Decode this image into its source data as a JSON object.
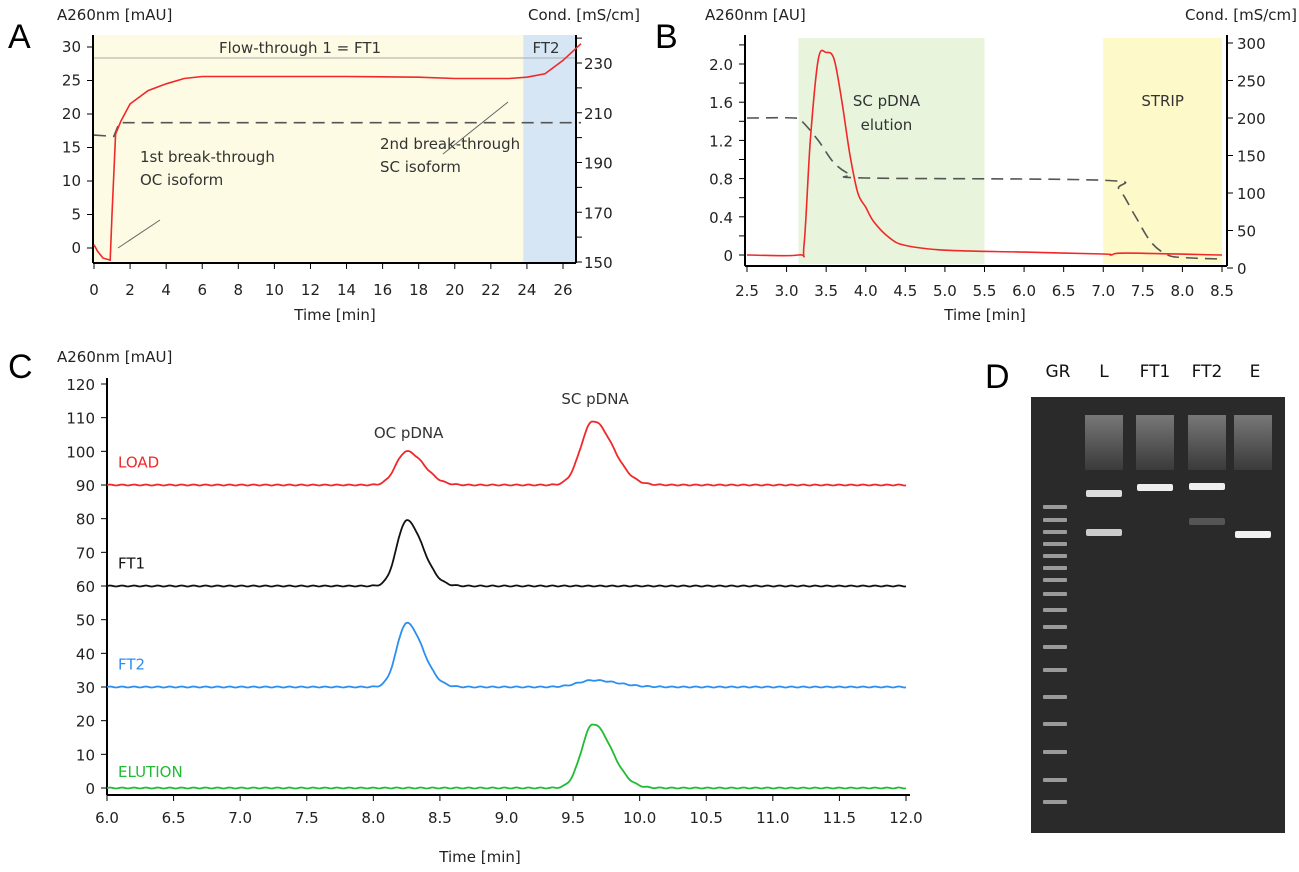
{
  "chart_data": [
    {
      "panel": "A",
      "type": "line",
      "ylabel": "A260nm [mAU]",
      "y2label": "Cond. [mS/cm]",
      "xlabel": "Time [min]",
      "xlim": [
        0,
        27
      ],
      "ylim": [
        -2.5,
        33
      ],
      "y2lim": [
        150,
        240
      ],
      "xticks": [
        0,
        2,
        4,
        6,
        8,
        10,
        12,
        14,
        16,
        18,
        20,
        22,
        24,
        26
      ],
      "yticks": [
        0,
        5,
        10,
        15,
        20,
        25,
        30
      ],
      "y2ticks": [
        150,
        170,
        190,
        210,
        230
      ],
      "regions": [
        {
          "label": "Flow-through 1 = FT1",
          "from": 0,
          "to": 23.8,
          "color": "#fdfbe3"
        },
        {
          "label": "FT2",
          "from": 23.8,
          "to": 27,
          "color": "#d6e6f5"
        }
      ],
      "annotations": [
        {
          "line1": "1st break-through",
          "line2": "OC isoform",
          "x": 1.2,
          "y": 4
        },
        {
          "line1": "2nd break-through",
          "line2": "SC isoform",
          "x": 23.3,
          "y": 25.5
        }
      ],
      "series": [
        {
          "name": "A260",
          "axis": "left",
          "color": "#f0282a",
          "dashed": false,
          "x": [
            0,
            0.2,
            0.5,
            0.9,
            1.0,
            1.2,
            1.5,
            2,
            3,
            4,
            5,
            6,
            10,
            14,
            18,
            20,
            23,
            24,
            25,
            26,
            27
          ],
          "y": [
            0.5,
            -0.5,
            -1.5,
            -1.8,
            5,
            17,
            19,
            21.5,
            23.5,
            24.5,
            25.3,
            25.6,
            25.6,
            25.6,
            25.5,
            25.3,
            25.3,
            25.5,
            26,
            28,
            30.5
          ]
        },
        {
          "name": "Conductivity",
          "axis": "right",
          "color": "#555555",
          "dashed": true,
          "x": [
            0,
            1.1,
            1.4,
            27
          ],
          "y": [
            201,
            200.5,
            206,
            206
          ]
        }
      ]
    },
    {
      "panel": "B",
      "type": "line",
      "ylabel": "A260nm [AU]",
      "y2label": "Cond. [mS/cm]",
      "xlabel": "Time [min]",
      "xlim": [
        2.5,
        8.5
      ],
      "ylim": [
        -0.1,
        2.2
      ],
      "y2lim": [
        0,
        300
      ],
      "xticks": [
        "2.5",
        "3.0",
        "3.5",
        "4.0",
        "4.5",
        "5.0",
        "5.5",
        "6.0",
        "6.5",
        "7.0",
        "7.5",
        "8.0",
        "8.5"
      ],
      "yticks": [
        "0",
        "0.4",
        "0.8",
        "1.2",
        "1.6",
        "2.0"
      ],
      "y2ticks": [
        0,
        50,
        100,
        150,
        200,
        250,
        300
      ],
      "regions": [
        {
          "line1": "SC pDNA",
          "line2": "elution",
          "from": 3.15,
          "to": 5.5,
          "color": "#e8f5dc"
        },
        {
          "line1": "STRIP",
          "line2": "",
          "from": 7.0,
          "to": 8.5,
          "color": "#fdf9c8"
        }
      ],
      "series": [
        {
          "name": "A260",
          "axis": "left",
          "color": "#f0282a",
          "dashed": false,
          "x": [
            2.5,
            3.15,
            3.22,
            3.3,
            3.4,
            3.5,
            3.6,
            3.7,
            3.8,
            3.9,
            4.0,
            4.1,
            4.3,
            4.5,
            5.0,
            6.0,
            7.0,
            7.1,
            7.3,
            8.5
          ],
          "y": [
            0,
            0,
            0.1,
            1.2,
            2.05,
            2.12,
            2.05,
            1.6,
            1.05,
            0.65,
            0.5,
            0.35,
            0.18,
            0.1,
            0.05,
            0.03,
            0.01,
            0,
            0.02,
            0
          ]
        },
        {
          "name": "Conductivity",
          "axis": "right",
          "color": "#555555",
          "dashed": true,
          "x": [
            2.5,
            3.1,
            3.2,
            3.4,
            3.6,
            3.8,
            4.0,
            7.0,
            7.2,
            7.4,
            7.6,
            7.8,
            8.0,
            8.5
          ],
          "y": [
            200,
            200,
            195,
            170,
            140,
            125,
            120,
            117,
            105,
            70,
            35,
            18,
            14,
            12
          ]
        }
      ]
    },
    {
      "panel": "C",
      "type": "line",
      "ylabel": "A260nm [mAU]",
      "xlabel": "Time [min]",
      "xlim": [
        6.0,
        12.0
      ],
      "ylim": [
        -2,
        120
      ],
      "xticks": [
        "6.0",
        "6.5",
        "7.0",
        "7.5",
        "8.0",
        "8.5",
        "9.0",
        "9.5",
        "10.0",
        "10.5",
        "11.0",
        "11.5",
        "12.0"
      ],
      "yticks": [
        0,
        10,
        20,
        30,
        40,
        50,
        60,
        70,
        80,
        90,
        100,
        110,
        120
      ],
      "peak_labels": [
        {
          "label": "OC pDNA",
          "x": 8.25,
          "y": 104
        },
        {
          "label": "SC pDNA",
          "x": 9.65,
          "y": 114
        }
      ],
      "series": [
        {
          "name": "LOAD",
          "color": "#f0282a",
          "baseline": 90,
          "peaks": [
            {
              "center": 8.25,
              "height": 10,
              "width": 0.14
            },
            {
              "center": 9.65,
              "height": 19,
              "width": 0.16
            }
          ]
        },
        {
          "name": "FT1",
          "color": "#111111",
          "baseline": 60,
          "peaks": [
            {
              "center": 8.25,
              "height": 19.5,
              "width": 0.13
            }
          ]
        },
        {
          "name": "FT2",
          "color": "#2a8ff0",
          "baseline": 30,
          "peaks": [
            {
              "center": 8.25,
              "height": 19,
              "width": 0.13
            },
            {
              "center": 9.65,
              "height": 2,
              "width": 0.2
            }
          ]
        },
        {
          "name": "ELUTION",
          "color": "#22bb33",
          "baseline": 0,
          "peaks": [
            {
              "center": 9.65,
              "height": 19,
              "width": 0.15
            }
          ]
        }
      ]
    },
    {
      "panel": "D",
      "type": "gel",
      "lanes": [
        "GR",
        "L",
        "FT1",
        "FT2",
        "E"
      ]
    }
  ],
  "panels": {
    "A": "A",
    "B": "B",
    "C": "C",
    "D": "D"
  }
}
